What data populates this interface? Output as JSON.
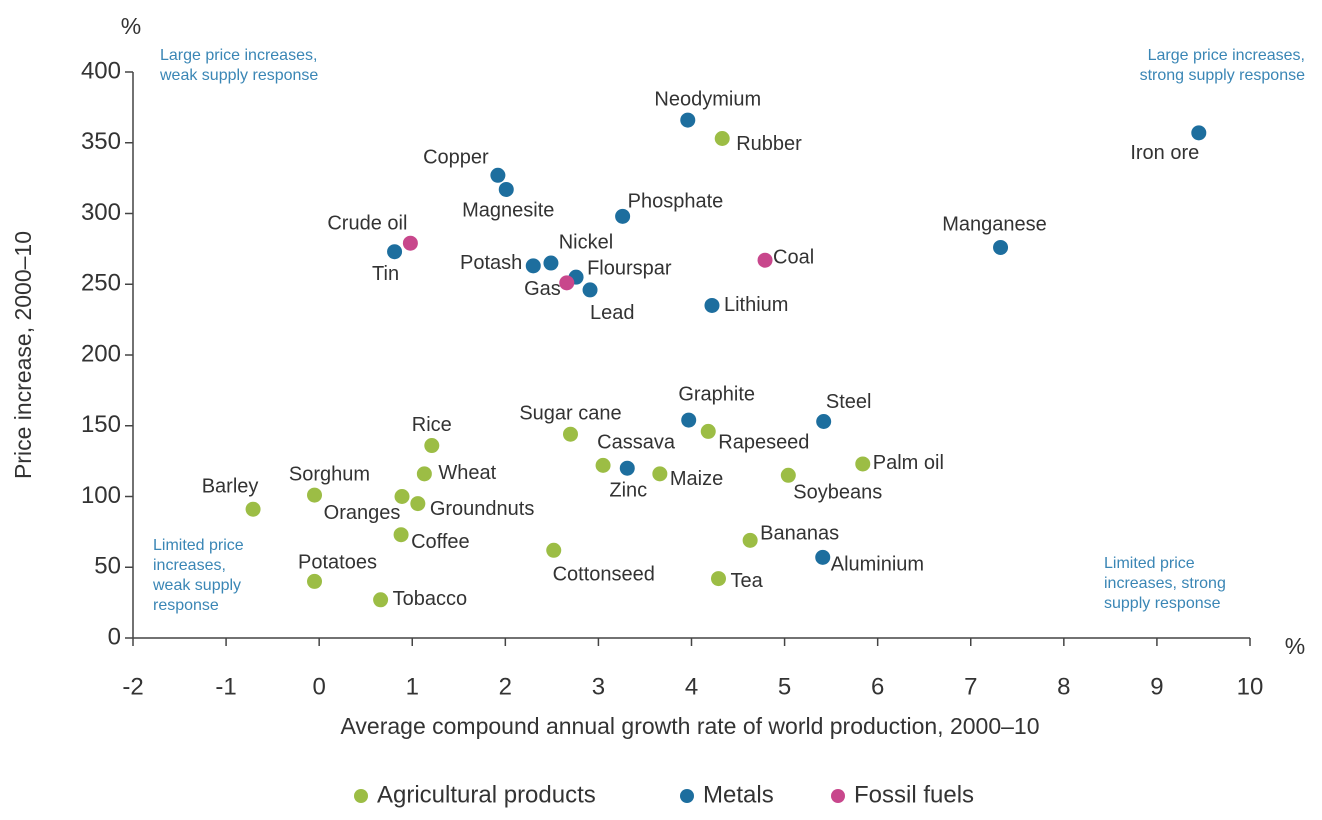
{
  "chart_data": {
    "type": "scatter",
    "x_label": "Average compound annual growth rate of world production, 2000–10",
    "y_label": "Price increase, 2000–10",
    "x_unit": "%",
    "y_unit": "%",
    "xlim": [
      -2,
      10
    ],
    "ylim": [
      0,
      400
    ],
    "xticks": [
      -2,
      -1,
      0,
      1,
      2,
      3,
      4,
      5,
      6,
      7,
      8,
      9,
      10
    ],
    "yticks": [
      0,
      50,
      100,
      150,
      200,
      250,
      300,
      350,
      400
    ],
    "annotations": [
      [
        "Large price increases,",
        "weak supply response"
      ],
      [
        "Large price increases,",
        "strong supply response"
      ],
      [
        "Limited price",
        "increases,",
        "weak supply",
        "response"
      ],
      [
        "Limited price",
        "increases, strong",
        "supply response"
      ]
    ],
    "series": [
      {
        "name": "Agricultural products",
        "color": "#9cbd45",
        "labels": [
          "Rubber",
          "Rice",
          "Sugar cane",
          "Rapeseed",
          "Cassava",
          "Maize",
          "Palm oil",
          "Soybeans",
          "Wheat",
          "Sorghum",
          "Oranges",
          "Groundnuts",
          "Barley",
          "Coffee",
          "Cottonseed",
          "Bananas",
          "Potatoes",
          "Tobacco",
          "Tea"
        ],
        "x": [
          4.33,
          1.21,
          2.7,
          4.18,
          3.05,
          3.66,
          5.84,
          5.04,
          1.13,
          -0.05,
          0.89,
          1.06,
          -0.71,
          0.88,
          2.52,
          4.63,
          -0.05,
          0.66,
          4.29
        ],
        "values": [
          353,
          136,
          144,
          146,
          122,
          116,
          123,
          115,
          116,
          101,
          100,
          95,
          91,
          73,
          62,
          69,
          40,
          27,
          42
        ]
      },
      {
        "name": "Metals",
        "color": "#1d6e9e",
        "labels": [
          "Neodymium",
          "Iron ore",
          "Copper",
          "Magnesite",
          "Phosphate",
          "Tin",
          "Manganese",
          "Potash",
          "Nickel",
          "Flourspar",
          "Lead",
          "Lithium",
          "Graphite",
          "Steel",
          "Zinc",
          "Aluminium"
        ],
        "x": [
          3.96,
          9.45,
          1.92,
          2.01,
          3.26,
          0.81,
          7.32,
          2.3,
          2.49,
          2.76,
          2.91,
          4.22,
          3.97,
          5.42,
          3.31,
          5.41
        ],
        "values": [
          366,
          357,
          327,
          317,
          298,
          273,
          276,
          263,
          265,
          255,
          246,
          235,
          154,
          153,
          120,
          57
        ]
      },
      {
        "name": "Fossil fuels",
        "color": "#c8478c",
        "labels": [
          "Crude oil",
          "Coal",
          "Gas"
        ],
        "x": [
          0.98,
          4.79,
          2.66
        ],
        "values": [
          279,
          267,
          251
        ]
      }
    ]
  }
}
